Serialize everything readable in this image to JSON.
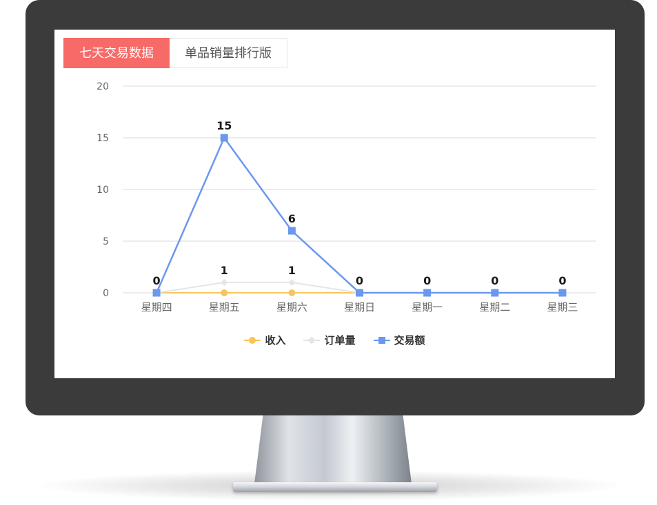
{
  "tabs": [
    {
      "label": "七天交易数据",
      "active": true
    },
    {
      "label": "单品销量排行版",
      "active": false
    }
  ],
  "chart_data": {
    "type": "line",
    "categories": [
      "星期四",
      "星期五",
      "星期六",
      "星期日",
      "星期一",
      "星期二",
      "星期三"
    ],
    "ylim": [
      0,
      20
    ],
    "yticks": [
      0,
      5,
      10,
      15,
      20
    ],
    "grid": true,
    "legend_position": "bottom",
    "series": [
      {
        "name": "收入",
        "values": [
          0,
          0,
          0,
          0,
          0,
          0,
          0
        ],
        "color": "#f8c55c",
        "marker": "circle",
        "show_labels": false
      },
      {
        "name": "订单量",
        "values": [
          0,
          1,
          1,
          0,
          0,
          0,
          0
        ],
        "color": "#e3e5e8",
        "marker": "diamond",
        "show_labels": true
      },
      {
        "name": "交易额",
        "values": [
          0,
          15,
          6,
          0,
          0,
          0,
          0
        ],
        "color": "#6b97ee",
        "marker": "square",
        "show_labels": true
      }
    ]
  }
}
